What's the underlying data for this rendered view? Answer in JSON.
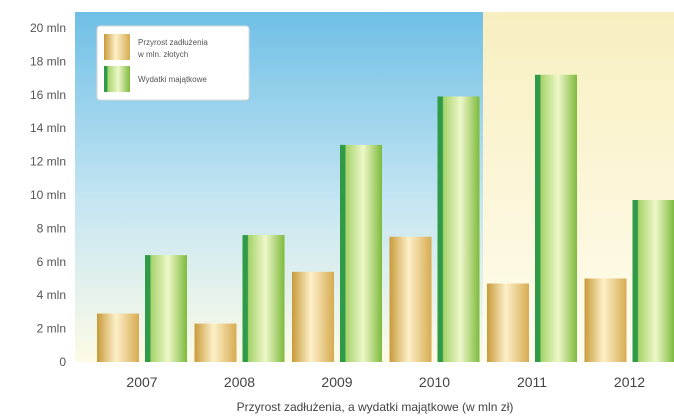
{
  "chart_data": {
    "type": "bar",
    "title": "",
    "xlabel": "Przyrost zadłużenia, a wydatki majątkowe  (w mln zł)",
    "ylabel": "",
    "categories": [
      "2007",
      "2008",
      "2009",
      "2010",
      "2011",
      "2012"
    ],
    "series": [
      {
        "name": "Przyrost zadłużenia w mln. złotych",
        "values": [
          2.9,
          2.3,
          5.4,
          7.5,
          4.7,
          5.0
        ],
        "color": "#e0b85a"
      },
      {
        "name": "Wydatki majątkowe",
        "values": [
          6.4,
          7.6,
          13.0,
          15.9,
          17.2,
          9.7
        ],
        "color": "#8cc63f"
      }
    ],
    "ylim": [
      0,
      20
    ],
    "yticks": [
      0,
      2,
      4,
      6,
      8,
      10,
      12,
      14,
      16,
      18,
      20
    ],
    "ytick_labels": [
      "0",
      "2 mln",
      "4 mln",
      "6 mln",
      "8 mln",
      "10 mln",
      "12 mln",
      "14 mln",
      "16 mln",
      "18 mln",
      "20 mln"
    ],
    "grid": false,
    "legend_position": "top-left",
    "background": {
      "left_color": "#7fc6e8",
      "right_color": "#fbf3c8"
    }
  }
}
